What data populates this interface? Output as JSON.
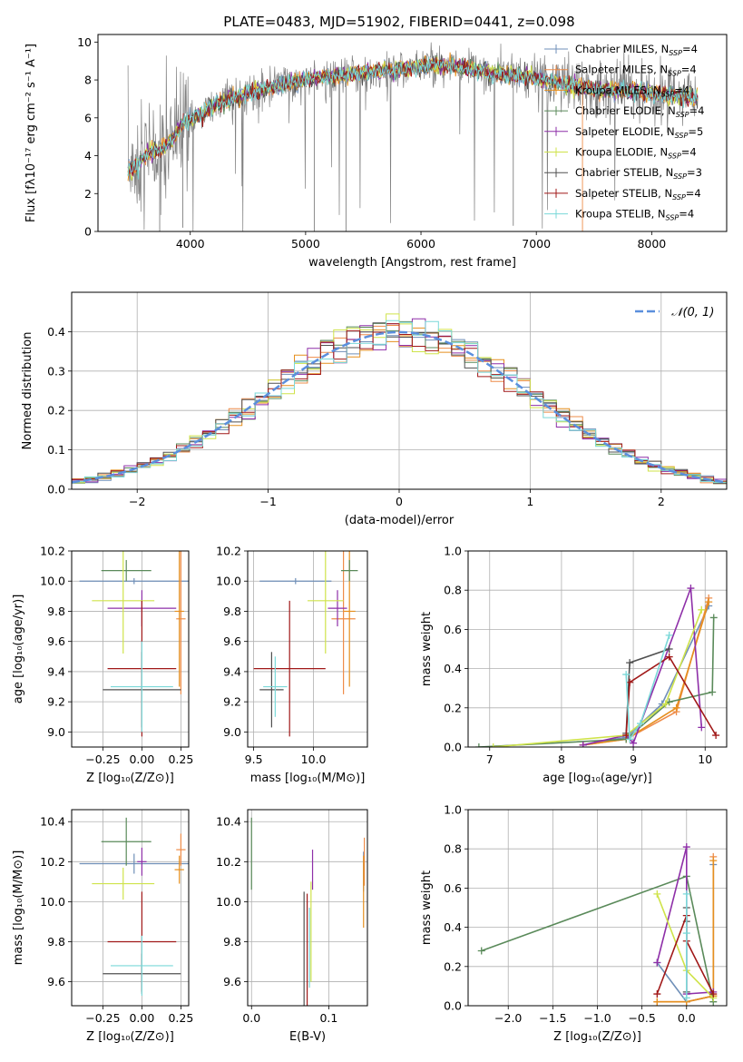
{
  "figure_title": "PLATE=0483, MJD=51902, FIBERID=0441, z=0.098",
  "colors": {
    "Chabrier MILES": "#6f8fb8",
    "Salpeter MILES": "#ee8c4a",
    "Kroupa MILES": "#e58f1f",
    "Chabrier ELODIE": "#5a8a5a",
    "Salpeter ELODIE": "#8e2fa8",
    "Kroupa ELODIE": "#cfe34a",
    "Chabrier STELIB": "#505050",
    "Salpeter STELIB": "#a01818",
    "Kroupa STELIB": "#7ad8d8",
    "data": "#808080",
    "gaussian": "#5b8fdd"
  },
  "chart_data": [
    {
      "id": "spectrum",
      "type": "line",
      "xlabel": "wavelength [Angstrom, rest frame]",
      "ylabel": "Flux [fλ10⁻¹⁷ erg cm⁻² s⁻¹ A⁻¹]",
      "xlim": [
        3200,
        8650
      ],
      "ylim": [
        0,
        10.4
      ],
      "xticks": [
        4000,
        5000,
        6000,
        7000,
        8000
      ],
      "yticks": [
        0,
        2,
        4,
        6,
        8,
        10
      ],
      "grid": false,
      "legend_placement": "upper right",
      "legend": [
        {
          "label": "Chabrier MILES, N",
          "sub": "SSP",
          "n": "=4",
          "model": "Chabrier MILES"
        },
        {
          "label": "Salpeter MILES, N",
          "sub": "SSP",
          "n": "=4",
          "model": "Salpeter MILES"
        },
        {
          "label": "Kroupa MILES, N",
          "sub": "SSP",
          "n": "=4",
          "model": "Kroupa MILES"
        },
        {
          "label": "Chabrier ELODIE, N",
          "sub": "SSP",
          "n": "=4",
          "model": "Chabrier ELODIE"
        },
        {
          "label": "Salpeter ELODIE, N",
          "sub": "SSP",
          "n": "=5",
          "model": "Salpeter ELODIE"
        },
        {
          "label": "Kroupa ELODIE, N",
          "sub": "SSP",
          "n": "=4",
          "model": "Kroupa ELODIE"
        },
        {
          "label": "Chabrier STELIB, N",
          "sub": "SSP",
          "n": "=3",
          "model": "Chabrier STELIB"
        },
        {
          "label": "Salpeter STELIB, N",
          "sub": "SSP",
          "n": "=4",
          "model": "Salpeter STELIB"
        },
        {
          "label": "Kroupa STELIB, N",
          "sub": "SSP",
          "n": "=4",
          "model": "Kroupa STELIB"
        }
      ],
      "continuum": [
        [
          3460,
          3.2
        ],
        [
          3550,
          3.6
        ],
        [
          3650,
          4.2
        ],
        [
          3750,
          4.3
        ],
        [
          3850,
          4.9
        ],
        [
          3950,
          5.8
        ],
        [
          4050,
          6.0
        ],
        [
          4150,
          6.5
        ],
        [
          4300,
          6.9
        ],
        [
          4500,
          7.3
        ],
        [
          4700,
          7.6
        ],
        [
          4900,
          7.9
        ],
        [
          5100,
          8.1
        ],
        [
          5300,
          8.2
        ],
        [
          5500,
          8.4
        ],
        [
          5700,
          8.5
        ],
        [
          5900,
          8.6
        ],
        [
          6100,
          8.8
        ],
        [
          6300,
          8.7
        ],
        [
          6500,
          8.5
        ],
        [
          6700,
          8.3
        ],
        [
          6900,
          8.2
        ],
        [
          7100,
          8.0
        ],
        [
          7300,
          7.7
        ],
        [
          7500,
          7.5
        ],
        [
          7700,
          7.5
        ],
        [
          7900,
          7.3
        ],
        [
          8100,
          7.2
        ],
        [
          8300,
          7.1
        ],
        [
          8400,
          7.05
        ]
      ]
    },
    {
      "id": "residuals",
      "type": "histogram",
      "xlabel": "(data-model)/error",
      "ylabel": "Normed distribution",
      "xlim": [
        -2.5,
        2.5
      ],
      "ylim": [
        0,
        0.5
      ],
      "xticks": [
        -2,
        -1,
        0,
        1,
        2
      ],
      "yticks": [
        0.0,
        0.1,
        0.2,
        0.3,
        0.4
      ],
      "grid": true,
      "legend_placement": "upper right",
      "legend": "𝒩(0, 1)",
      "bin_width": 0.1,
      "gaussian_curve": {
        "mean": 0,
        "sigma": 1,
        "style": "dashed"
      }
    },
    {
      "id": "age-vs-Z",
      "type": "scatter",
      "xlabel": "Z [log₁₀(Z/Z⊙)]",
      "ylabel": "age  [log₁₀(age/yr)]",
      "xlim": [
        -0.45,
        0.3
      ],
      "ylim": [
        8.9,
        10.2
      ],
      "xticks": [
        -0.25,
        0.0,
        0.25
      ],
      "xticklabels": [
        "−0.25",
        "0.00",
        "0.25"
      ],
      "yticks": [
        9.0,
        9.2,
        9.4,
        9.6,
        9.8,
        10.0,
        10.2
      ],
      "grid": true,
      "points": [
        {
          "model": "Chabrier MILES",
          "x": -0.05,
          "xerr": 0.35,
          "y": 10.0,
          "yerr": 0.02
        },
        {
          "model": "Salpeter MILES",
          "x": 0.25,
          "xerr": 0.03,
          "y": 9.75,
          "yerr": 0.5
        },
        {
          "model": "Kroupa MILES",
          "x": 0.24,
          "xerr": 0.03,
          "y": 9.8,
          "yerr": 0.5
        },
        {
          "model": "Chabrier ELODIE",
          "x": -0.1,
          "xerr": 0.16,
          "y": 10.07,
          "yerr": 0.07
        },
        {
          "model": "Salpeter ELODIE",
          "x": 0.0,
          "xerr": 0.22,
          "y": 9.82,
          "yerr": 0.12
        },
        {
          "model": "Kroupa ELODIE",
          "x": -0.12,
          "xerr": 0.2,
          "y": 9.87,
          "yerr": 0.35
        },
        {
          "model": "Chabrier STELIB",
          "x": 0.0,
          "xerr": 0.25,
          "y": 9.28,
          "yerr": 0.25
        },
        {
          "model": "Salpeter STELIB",
          "x": 0.0,
          "xerr": 0.22,
          "y": 9.42,
          "yerr": 0.45
        },
        {
          "model": "Kroupa STELIB",
          "x": 0.0,
          "xerr": 0.2,
          "y": 9.3,
          "yerr": 0.3
        }
      ]
    },
    {
      "id": "age-vs-mass",
      "type": "scatter",
      "xlabel": "mass [log₁₀(M/M⊙)]",
      "ylabel": "",
      "xlim": [
        9.45,
        10.45
      ],
      "ylim": [
        8.9,
        10.2
      ],
      "xticks": [
        9.5,
        10.0
      ],
      "yticks": [
        9.0,
        9.2,
        9.4,
        9.6,
        9.8,
        10.0,
        10.2
      ],
      "grid": true,
      "points": [
        {
          "model": "Chabrier MILES",
          "x": 9.85,
          "xerr": 0.3,
          "y": 10.0,
          "yerr": 0.02
        },
        {
          "model": "Salpeter MILES",
          "x": 10.25,
          "xerr": 0.1,
          "y": 9.75,
          "yerr": 0.5
        },
        {
          "model": "Kroupa MILES",
          "x": 10.3,
          "xerr": 0.05,
          "y": 9.8,
          "yerr": 0.5
        },
        {
          "model": "Chabrier ELODIE",
          "x": 10.3,
          "xerr": 0.07,
          "y": 10.07,
          "yerr": 0.07
        },
        {
          "model": "Salpeter ELODIE",
          "x": 10.2,
          "xerr": 0.08,
          "y": 9.82,
          "yerr": 0.12
        },
        {
          "model": "Kroupa ELODIE",
          "x": 10.1,
          "xerr": 0.15,
          "y": 9.87,
          "yerr": 0.35
        },
        {
          "model": "Chabrier STELIB",
          "x": 9.65,
          "xerr": 0.1,
          "y": 9.28,
          "yerr": 0.25
        },
        {
          "model": "Salpeter STELIB",
          "x": 9.8,
          "xerr": 0.3,
          "y": 9.42,
          "yerr": 0.45
        },
        {
          "model": "Kroupa STELIB",
          "x": 9.68,
          "xerr": 0.1,
          "y": 9.3,
          "yerr": 0.2
        }
      ]
    },
    {
      "id": "weight-vs-age",
      "type": "line",
      "xlabel": "age  [log₁₀(age/yr)]",
      "ylabel": "mass weight",
      "xlim": [
        6.7,
        10.3
      ],
      "ylim": [
        0,
        1.0
      ],
      "xticks": [
        7,
        8,
        9,
        10
      ],
      "yticks": [
        0.0,
        0.2,
        0.4,
        0.6,
        0.8,
        1.0
      ],
      "grid": true,
      "series": [
        {
          "model": "Chabrier MILES",
          "x": [
            8.3,
            8.9,
            9.4,
            10.05
          ],
          "y": [
            0.01,
            0.05,
            0.22,
            0.72
          ]
        },
        {
          "model": "Salpeter MILES",
          "x": [
            8.3,
            8.9,
            9.6,
            10.05
          ],
          "y": [
            0.01,
            0.04,
            0.18,
            0.76
          ]
        },
        {
          "model": "Kroupa MILES",
          "x": [
            8.3,
            8.9,
            9.6,
            10.05
          ],
          "y": [
            0.01,
            0.04,
            0.2,
            0.74
          ]
        },
        {
          "model": "Chabrier ELODIE",
          "x": [
            6.85,
            8.9,
            9.5,
            10.1,
            10.12
          ],
          "y": [
            0.0,
            0.04,
            0.23,
            0.28,
            0.66
          ]
        },
        {
          "model": "Salpeter ELODIE",
          "x": [
            8.3,
            8.9,
            9.0,
            9.8,
            9.95
          ],
          "y": [
            0.01,
            0.06,
            0.02,
            0.81,
            0.1
          ]
        },
        {
          "model": "Kroupa ELODIE",
          "x": [
            7.05,
            8.9,
            9.45,
            9.95
          ],
          "y": [
            0.0,
            0.06,
            0.22,
            0.7
          ]
        },
        {
          "model": "Chabrier STELIB",
          "x": [
            8.9,
            8.95,
            9.5
          ],
          "y": [
            0.07,
            0.43,
            0.5
          ]
        },
        {
          "model": "Salpeter STELIB",
          "x": [
            8.9,
            8.95,
            9.5,
            10.15
          ],
          "y": [
            0.06,
            0.33,
            0.46,
            0.06
          ]
        },
        {
          "model": "Kroupa STELIB",
          "x": [
            8.9,
            8.95,
            9.1,
            9.5
          ],
          "y": [
            0.37,
            0.04,
            0.12,
            0.57
          ]
        }
      ]
    },
    {
      "id": "mass-vs-Z",
      "type": "scatter",
      "xlabel": "Z [log₁₀(Z/Z⊙)]",
      "ylabel": "mass [log₁₀(M/M⊙)]",
      "xlim": [
        -0.45,
        0.3
      ],
      "ylim": [
        9.48,
        10.46
      ],
      "xticks": [
        -0.25,
        0.0,
        0.25
      ],
      "xticklabels": [
        "−0.25",
        "0.00",
        "0.25"
      ],
      "yticks": [
        9.6,
        9.8,
        10.0,
        10.2,
        10.4
      ],
      "grid": true,
      "points": [
        {
          "model": "Chabrier MILES",
          "x": -0.05,
          "xerr": 0.35,
          "y": 10.19,
          "yerr": 0.05
        },
        {
          "model": "Salpeter MILES",
          "x": 0.25,
          "xerr": 0.03,
          "y": 10.26,
          "yerr": 0.08
        },
        {
          "model": "Kroupa MILES",
          "x": 0.24,
          "xerr": 0.03,
          "y": 10.16,
          "yerr": 0.07
        },
        {
          "model": "Chabrier ELODIE",
          "x": -0.1,
          "xerr": 0.16,
          "y": 10.3,
          "yerr": 0.12
        },
        {
          "model": "Salpeter ELODIE",
          "x": 0.0,
          "xerr": 0.03,
          "y": 10.2,
          "yerr": 0.07
        },
        {
          "model": "Kroupa ELODIE",
          "x": -0.12,
          "xerr": 0.2,
          "y": 10.09,
          "yerr": 0.08
        },
        {
          "model": "Chabrier STELIB",
          "x": 0.0,
          "xerr": 0.25,
          "y": 9.64,
          "yerr": 0.1
        },
        {
          "model": "Salpeter STELIB",
          "x": 0.0,
          "xerr": 0.22,
          "y": 9.8,
          "yerr": 0.25
        },
        {
          "model": "Kroupa STELIB",
          "x": 0.0,
          "xerr": 0.2,
          "y": 9.68,
          "yerr": 0.15
        }
      ]
    },
    {
      "id": "mass-vs-EBV",
      "type": "scatter",
      "xlabel": "E(B-V)",
      "ylabel": "",
      "xlim": [
        -0.005,
        0.15
      ],
      "ylim": [
        9.48,
        10.46
      ],
      "xticks": [
        0.0,
        0.1
      ],
      "yticks": [
        9.6,
        9.8,
        10.0,
        10.2,
        10.4
      ],
      "grid": true,
      "points": [
        {
          "model": "Chabrier MILES",
          "x": 0.145,
          "yerr": 0.1,
          "y": 10.15
        },
        {
          "model": "Salpeter MILES",
          "x": 0.146,
          "yerr": 0.12,
          "y": 10.2
        },
        {
          "model": "Kroupa MILES",
          "x": 0.145,
          "yerr": 0.18,
          "y": 10.05
        },
        {
          "model": "Chabrier ELODIE",
          "x": 0.0,
          "yerr": 0.18,
          "y": 10.24
        },
        {
          "model": "Salpeter ELODIE",
          "x": 0.079,
          "yerr": 0.1,
          "y": 10.16
        },
        {
          "model": "Kroupa ELODIE",
          "x": 0.077,
          "yerr": 0.25,
          "y": 9.85
        },
        {
          "model": "Chabrier STELIB",
          "x": 0.068,
          "yerr": 0.3,
          "y": 9.75
        },
        {
          "model": "Salpeter STELIB",
          "x": 0.072,
          "yerr": 0.28,
          "y": 9.76
        },
        {
          "model": "Kroupa STELIB",
          "x": 0.075,
          "yerr": 0.2,
          "y": 9.77
        }
      ]
    },
    {
      "id": "weight-vs-Z",
      "type": "line",
      "xlabel": "Z [log₁₀(Z/Z⊙)]",
      "ylabel": "mass weight",
      "xlim": [
        -2.45,
        0.45
      ],
      "ylim": [
        0,
        1.0
      ],
      "xticks": [
        -2.0,
        -1.5,
        -1.0,
        -0.5,
        0.0
      ],
      "xticklabels": [
        "−2.0",
        "−1.5",
        "−1.0",
        "−0.5",
        "0.0"
      ],
      "yticks": [
        0.0,
        0.2,
        0.4,
        0.6,
        0.8,
        1.0
      ],
      "grid": true,
      "series": [
        {
          "model": "Chabrier MILES",
          "x": [
            -0.33,
            0.0,
            0.3,
            0.3
          ],
          "y": [
            0.22,
            0.02,
            0.05,
            0.72
          ]
        },
        {
          "model": "Salpeter MILES",
          "x": [
            -0.33,
            0.0,
            0.3,
            0.3
          ],
          "y": [
            0.02,
            0.02,
            0.05,
            0.76
          ]
        },
        {
          "model": "Kroupa MILES",
          "x": [
            -0.33,
            0.0,
            0.3,
            0.3
          ],
          "y": [
            0.02,
            0.02,
            0.05,
            0.74
          ]
        },
        {
          "model": "Chabrier ELODIE",
          "x": [
            -2.3,
            0.0,
            0.3
          ],
          "y": [
            0.28,
            0.66,
            0.02
          ]
        },
        {
          "model": "Salpeter ELODIE",
          "x": [
            -0.33,
            0.0,
            0.0,
            0.3
          ],
          "y": [
            0.22,
            0.81,
            0.06,
            0.07
          ]
        },
        {
          "model": "Kroupa ELODIE",
          "x": [
            -0.33,
            0.0,
            0.3
          ],
          "y": [
            0.57,
            0.18,
            0.04
          ]
        },
        {
          "model": "Chabrier STELIB",
          "x": [
            0.0,
            0.0,
            0.0
          ],
          "y": [
            0.5,
            0.43,
            0.07
          ]
        },
        {
          "model": "Salpeter STELIB",
          "x": [
            -0.33,
            0.0,
            0.0,
            0.3
          ],
          "y": [
            0.06,
            0.46,
            0.33,
            0.06
          ]
        },
        {
          "model": "Kroupa STELIB",
          "x": [
            0.0,
            0.0,
            0.0
          ],
          "y": [
            0.57,
            0.37,
            0.04
          ]
        }
      ]
    }
  ]
}
